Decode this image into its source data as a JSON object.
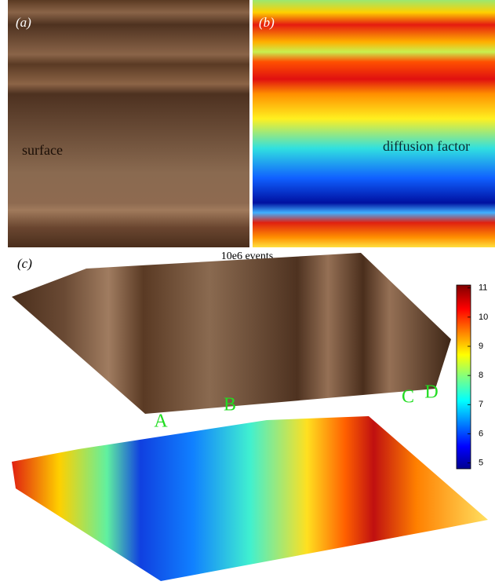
{
  "panels": {
    "a": {
      "label": "(a)",
      "text": "surface"
    },
    "b": {
      "label": "(b)",
      "text": "diffusion factor"
    },
    "c": {
      "label": "(c)",
      "title": "10e6 events",
      "points": [
        "A",
        "B",
        "C",
        "D"
      ]
    }
  },
  "colorbar": {
    "range": [
      4.8,
      11.1
    ],
    "ticks": [
      5,
      6,
      7,
      8,
      9,
      10,
      11
    ]
  }
}
